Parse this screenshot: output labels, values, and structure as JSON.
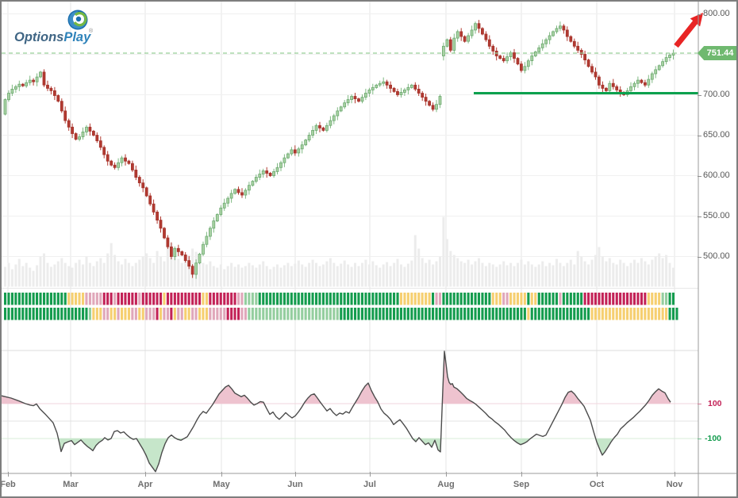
{
  "logo": {
    "name_part1": "Options",
    "name_part2": "Play",
    "registered": "®"
  },
  "price_axis": {
    "labels": [
      "800.00",
      "700.00",
      "650.00",
      "600.00",
      "550.00",
      "500.00"
    ],
    "values": [
      800,
      700,
      650,
      600,
      550,
      500
    ],
    "current_price_label": "751.44",
    "current_price": 751.44
  },
  "x_axis": {
    "months": [
      "Feb",
      "Mar",
      "Apr",
      "May",
      "Jun",
      "Jul",
      "Aug",
      "Sep",
      "Oct",
      "Nov"
    ]
  },
  "oscillator_axis": {
    "upper_label": "100",
    "lower_label": "-100"
  },
  "annotations": {
    "trend_arrow": "up-right",
    "support_line_price": 702,
    "resistance_dashed_price": 751.44
  },
  "colors": {
    "candle_up_fill": "#a9d2a4",
    "candle_up_stroke": "#6ca86f",
    "candle_down": "#b23a31",
    "volume_bar": "#ececec",
    "heat_green": "#149c4e",
    "heat_light_green": "#94ce9f",
    "heat_yellow": "#f6cf70",
    "heat_pink": "#e0a7ba",
    "heat_crimson": "#c32257",
    "support_line": "#0aa14e",
    "dashed_line": "#98cf98",
    "badge_bg": "#6fb96f",
    "arrow_red": "#e82424",
    "osc_line": "#4c4c4c",
    "osc_fill_up": "#eec3cf",
    "osc_fill_down": "#c6e6ca"
  },
  "chart_data": [
    {
      "type": "candlestick",
      "name": "price-series",
      "x_range_months": [
        "Feb",
        "Nov"
      ],
      "y_range": [
        478,
        800
      ],
      "last_close": 751.44,
      "closes": [
        694,
        702,
        707,
        710,
        713,
        711,
        715,
        718,
        716,
        722,
        728,
        712,
        708,
        705,
        699,
        692,
        680,
        668,
        660,
        652,
        645,
        648,
        654,
        660,
        655,
        650,
        643,
        635,
        626,
        618,
        613,
        610,
        616,
        622,
        618,
        615,
        607,
        598,
        591,
        585,
        575,
        565,
        555,
        545,
        535,
        523,
        512,
        500,
        510,
        506,
        502,
        495,
        488,
        478,
        492,
        503,
        515,
        525,
        535,
        544,
        552,
        560,
        566,
        572,
        578,
        583,
        579,
        576,
        582,
        588,
        593,
        598,
        602,
        606,
        603,
        600,
        605,
        610,
        616,
        622,
        627,
        632,
        628,
        633,
        638,
        644,
        650,
        656,
        662,
        659,
        656,
        662,
        668,
        674,
        680,
        685,
        690,
        694,
        698,
        695,
        692,
        697,
        702,
        706,
        709,
        712,
        714,
        716,
        712,
        708,
        704,
        700,
        703,
        706,
        709,
        712,
        707,
        702,
        697,
        692,
        687,
        682,
        688,
        698,
        760,
        768,
        755,
        770,
        778,
        772,
        766,
        773,
        780,
        788,
        782,
        775,
        768,
        760,
        754,
        748,
        745,
        742,
        747,
        752,
        745,
        738,
        730,
        735,
        742,
        748,
        753,
        758,
        763,
        768,
        773,
        778,
        782,
        785,
        780,
        772,
        766,
        760,
        755,
        750,
        743,
        735,
        728,
        722,
        712,
        708,
        705,
        714,
        710,
        706,
        703,
        700,
        705,
        710,
        714,
        718,
        715,
        712,
        719,
        726,
        731,
        736,
        741,
        746,
        749,
        751.4
      ]
    },
    {
      "type": "bar",
      "name": "volume",
      "values": [
        25,
        30,
        22,
        28,
        35,
        26,
        30,
        24,
        20,
        27,
        38,
        42,
        30,
        25,
        28,
        32,
        36,
        30,
        26,
        24,
        30,
        34,
        28,
        38,
        30,
        26,
        32,
        36,
        30,
        42,
        55,
        40,
        32,
        28,
        35,
        30,
        26,
        30,
        34,
        38,
        42,
        36,
        30,
        45,
        38,
        32,
        50,
        55,
        42,
        35,
        30,
        34,
        40,
        48,
        44,
        36,
        30,
        28,
        32,
        26,
        24,
        28,
        22,
        26,
        30,
        25,
        28,
        24,
        26,
        30,
        27,
        24,
        28,
        32,
        26,
        22,
        25,
        28,
        24,
        27,
        30,
        26,
        29,
        33,
        28,
        25,
        30,
        34,
        30,
        26,
        28,
        32,
        36,
        30,
        26,
        29,
        33,
        28,
        25,
        30,
        26,
        30,
        34,
        28,
        32,
        27,
        24,
        28,
        31,
        26,
        30,
        35,
        28,
        25,
        29,
        33,
        65,
        48,
        36,
        30,
        34,
        28,
        32,
        38,
        88,
        60,
        45,
        40,
        36,
        32,
        30,
        34,
        28,
        32,
        36,
        30,
        26,
        30,
        28,
        25,
        28,
        32,
        27,
        30,
        26,
        30,
        34,
        28,
        32,
        28,
        25,
        28,
        32,
        26,
        30,
        27,
        35,
        30,
        26,
        30,
        34,
        28,
        45,
        38,
        32,
        28,
        34,
        40,
        50,
        38,
        32,
        36,
        30,
        28,
        34,
        30,
        26,
        30,
        34,
        30,
        36,
        32,
        28,
        34,
        38,
        42,
        36,
        40,
        30,
        24
      ]
    },
    {
      "type": "heatmap",
      "name": "signal-strip",
      "rows": 2,
      "legend": {
        "g": "green",
        "l": "light-green",
        "y": "yellow",
        "p": "pink",
        "r": "crimson"
      },
      "row1": "ggggggggggggggggggyyyyyppppprrrprrrrrrprrrrrryrrrrrrrrrryyrrrrrrrrppllllggggggggggggggggggggggggggggggggggggggggyyyyyyyyygppggggggggggggggyyyppyyyyygyyggggggpggggggrrrrrrrrrrrrrrrrrryyyyllgg",
      "row2": "gggggggggggggggggggggggglyyyppyypyyyppyypppryppryppyyppyyyppppprrrrppllllllllllllllllllllllllllgggggggggggggggggggggggggggggggggggggggggggggggggggggyggggggggggggggggnyyyyyyyyyyyyyyyyyyyyyyggg"
    },
    {
      "type": "area",
      "name": "oscillator",
      "bands": {
        "upper": 100,
        "lower": -100
      },
      "points": [
        [
          0,
          145
        ],
        [
          12,
          132
        ],
        [
          22,
          115
        ],
        [
          30,
          100
        ],
        [
          36,
          92
        ],
        [
          40,
          88
        ],
        [
          44,
          98
        ],
        [
          48,
          72
        ],
        [
          55,
          40
        ],
        [
          60,
          15
        ],
        [
          65,
          -10
        ],
        [
          70,
          -70
        ],
        [
          73,
          -130
        ],
        [
          75,
          -175
        ],
        [
          79,
          -128
        ],
        [
          84,
          -118
        ],
        [
          88,
          -112
        ],
        [
          92,
          -135
        ],
        [
          96,
          -122
        ],
        [
          100,
          -108
        ],
        [
          104,
          -128
        ],
        [
          108,
          -145
        ],
        [
          112,
          -158
        ],
        [
          115,
          -170
        ],
        [
          119,
          -140
        ],
        [
          123,
          -122
        ],
        [
          127,
          -110
        ],
        [
          130,
          -95
        ],
        [
          134,
          -108
        ],
        [
          138,
          -100
        ],
        [
          142,
          -60
        ],
        [
          146,
          -55
        ],
        [
          150,
          -68
        ],
        [
          154,
          -62
        ],
        [
          158,
          -80
        ],
        [
          162,
          -95
        ],
        [
          166,
          -105
        ],
        [
          170,
          -100
        ],
        [
          174,
          -130
        ],
        [
          178,
          -160
        ],
        [
          182,
          -195
        ],
        [
          186,
          -240
        ],
        [
          190,
          -265
        ],
        [
          194,
          -290
        ],
        [
          198,
          -245
        ],
        [
          202,
          -180
        ],
        [
          206,
          -130
        ],
        [
          210,
          -95
        ],
        [
          214,
          -80
        ],
        [
          218,
          -95
        ],
        [
          222,
          -105
        ],
        [
          226,
          -110
        ],
        [
          230,
          -100
        ],
        [
          234,
          -90
        ],
        [
          238,
          -60
        ],
        [
          242,
          -30
        ],
        [
          246,
          5
        ],
        [
          250,
          35
        ],
        [
          254,
          55
        ],
        [
          258,
          45
        ],
        [
          262,
          70
        ],
        [
          266,
          95
        ],
        [
          270,
          125
        ],
        [
          274,
          155
        ],
        [
          278,
          175
        ],
        [
          282,
          195
        ],
        [
          286,
          205
        ],
        [
          290,
          185
        ],
        [
          294,
          160
        ],
        [
          298,
          150
        ],
        [
          302,
          140
        ],
        [
          306,
          148
        ],
        [
          310,
          130
        ],
        [
          314,
          108
        ],
        [
          318,
          92
        ],
        [
          322,
          100
        ],
        [
          326,
          112
        ],
        [
          330,
          108
        ],
        [
          334,
          72
        ],
        [
          338,
          38
        ],
        [
          342,
          52
        ],
        [
          346,
          25
        ],
        [
          350,
          10
        ],
        [
          354,
          28
        ],
        [
          358,
          48
        ],
        [
          362,
          32
        ],
        [
          366,
          18
        ],
        [
          370,
          30
        ],
        [
          374,
          52
        ],
        [
          378,
          78
        ],
        [
          382,
          108
        ],
        [
          386,
          132
        ],
        [
          390,
          150
        ],
        [
          394,
          156
        ],
        [
          398,
          132
        ],
        [
          402,
          106
        ],
        [
          406,
          82
        ],
        [
          410,
          58
        ],
        [
          414,
          72
        ],
        [
          418,
          48
        ],
        [
          422,
          32
        ],
        [
          426,
          46
        ],
        [
          430,
          40
        ],
        [
          434,
          54
        ],
        [
          438,
          46
        ],
        [
          442,
          78
        ],
        [
          446,
          108
        ],
        [
          450,
          138
        ],
        [
          454,
          172
        ],
        [
          458,
          200
        ],
        [
          462,
          218
        ],
        [
          466,
          175
        ],
        [
          470,
          140
        ],
        [
          474,
          110
        ],
        [
          478,
          70
        ],
        [
          482,
          45
        ],
        [
          486,
          30
        ],
        [
          490,
          10
        ],
        [
          494,
          -20
        ],
        [
          498,
          -5
        ],
        [
          502,
          8
        ],
        [
          506,
          -15
        ],
        [
          510,
          -40
        ],
        [
          514,
          -70
        ],
        [
          518,
          -100
        ],
        [
          522,
          -118
        ],
        [
          526,
          -95
        ],
        [
          530,
          -115
        ],
        [
          534,
          -135
        ],
        [
          538,
          -125
        ],
        [
          542,
          -150
        ],
        [
          546,
          -110
        ],
        [
          550,
          -165
        ],
        [
          553,
          -177
        ],
        [
          556,
          180
        ],
        [
          558,
          400
        ],
        [
          560,
          330
        ],
        [
          562,
          255
        ],
        [
          564,
          222
        ],
        [
          566,
          210
        ],
        [
          568,
          215
        ],
        [
          570,
          195
        ],
        [
          574,
          185
        ],
        [
          578,
          168
        ],
        [
          582,
          150
        ],
        [
          586,
          130
        ],
        [
          590,
          118
        ],
        [
          594,
          108
        ],
        [
          598,
          95
        ],
        [
          602,
          78
        ],
        [
          606,
          62
        ],
        [
          610,
          45
        ],
        [
          614,
          25
        ],
        [
          618,
          12
        ],
        [
          622,
          -5
        ],
        [
          626,
          -18
        ],
        [
          630,
          -35
        ],
        [
          634,
          -52
        ],
        [
          638,
          -75
        ],
        [
          642,
          -95
        ],
        [
          646,
          -112
        ],
        [
          650,
          -125
        ],
        [
          654,
          -135
        ],
        [
          658,
          -128
        ],
        [
          662,
          -118
        ],
        [
          666,
          -102
        ],
        [
          670,
          -88
        ],
        [
          674,
          -75
        ],
        [
          678,
          -82
        ],
        [
          682,
          -88
        ],
        [
          686,
          -80
        ],
        [
          690,
          -45
        ],
        [
          694,
          -10
        ],
        [
          698,
          25
        ],
        [
          702,
          60
        ],
        [
          706,
          95
        ],
        [
          710,
          135
        ],
        [
          714,
          165
        ],
        [
          718,
          172
        ],
        [
          722,
          155
        ],
        [
          726,
          130
        ],
        [
          730,
          108
        ],
        [
          734,
          85
        ],
        [
          738,
          45
        ],
        [
          742,
          5
        ],
        [
          746,
          -60
        ],
        [
          750,
          -120
        ],
        [
          754,
          -165
        ],
        [
          757,
          -195
        ],
        [
          760,
          -178
        ],
        [
          764,
          -150
        ],
        [
          768,
          -120
        ],
        [
          772,
          -95
        ],
        [
          776,
          -75
        ],
        [
          780,
          -45
        ],
        [
          784,
          -28
        ],
        [
          788,
          -10
        ],
        [
          792,
          5
        ],
        [
          796,
          20
        ],
        [
          800,
          38
        ],
        [
          804,
          55
        ],
        [
          808,
          75
        ],
        [
          812,
          95
        ],
        [
          816,
          120
        ],
        [
          820,
          148
        ],
        [
          824,
          168
        ],
        [
          828,
          185
        ],
        [
          832,
          172
        ],
        [
          836,
          162
        ],
        [
          840,
          128
        ],
        [
          843,
          108
        ]
      ]
    }
  ]
}
